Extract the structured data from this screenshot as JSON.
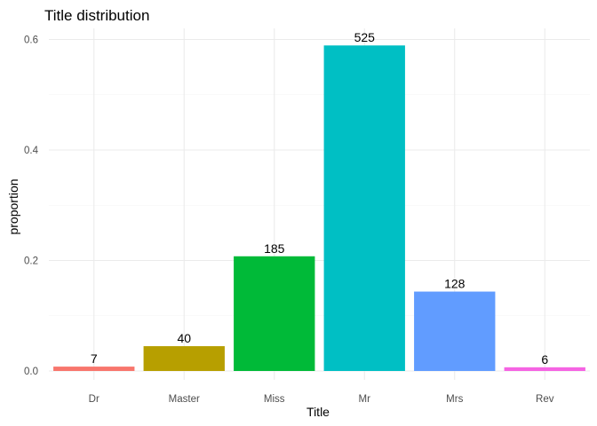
{
  "chart_data": {
    "type": "bar",
    "title": "Title distribution",
    "xlabel": "Title",
    "ylabel": "proportion",
    "categories": [
      "Dr",
      "Master",
      "Miss",
      "Mr",
      "Mrs",
      "Rev"
    ],
    "values": [
      0.0079,
      0.0449,
      0.2076,
      0.5892,
      0.1437,
      0.0067
    ],
    "labels": [
      "7",
      "40",
      "185",
      "525",
      "128",
      "6"
    ],
    "colors": [
      "#F8766D",
      "#B79F00",
      "#00BA38",
      "#00BFC4",
      "#619CFF",
      "#F564E3"
    ],
    "ylim": [
      0,
      0.62
    ],
    "yticks": [
      0.0,
      0.2,
      0.4,
      0.6
    ],
    "ytick_labels": [
      "0.0",
      "0.2",
      "0.4",
      "0.6"
    ],
    "grid": true,
    "legend": "none"
  }
}
